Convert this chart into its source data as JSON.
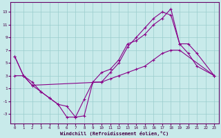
{
  "xlabel": "Windchill (Refroidissement éolien,°C)",
  "bg_color": "#c8eaea",
  "line_color": "#880088",
  "grid_color": "#99cccc",
  "xlim": [
    -0.5,
    23.5
  ],
  "ylim": [
    -4.5,
    14.5
  ],
  "xticks": [
    0,
    1,
    2,
    3,
    4,
    5,
    6,
    7,
    8,
    9,
    10,
    11,
    12,
    13,
    14,
    15,
    16,
    17,
    18,
    19,
    20,
    21,
    22,
    23
  ],
  "yticks": [
    -3,
    -1,
    1,
    3,
    5,
    7,
    9,
    11,
    13
  ],
  "line1_x": [
    0,
    1,
    2,
    3,
    4,
    5,
    6,
    7,
    8,
    9,
    10,
    11,
    12,
    13,
    14,
    15,
    16,
    17,
    18,
    19,
    20,
    21,
    23
  ],
  "line1_y": [
    6,
    3,
    2,
    0.5,
    -0.5,
    -1.5,
    -3.5,
    -3.5,
    -0.7,
    2,
    3.5,
    4.0,
    5.5,
    8.0,
    8.5,
    9.5,
    11.0,
    12.0,
    13.5,
    8.0,
    6.5,
    4.5,
    3.0
  ],
  "line2_x": [
    0,
    1,
    2,
    10,
    11,
    12,
    13,
    14,
    15,
    16,
    17,
    18,
    19,
    23
  ],
  "line2_y": [
    3,
    3,
    1.5,
    2.0,
    2.5,
    3.0,
    3.5,
    4.0,
    4.5,
    5.5,
    6.5,
    7.0,
    7.0,
    3.0
  ],
  "line3_x": [
    0,
    1,
    2,
    3,
    4,
    5,
    6,
    7,
    8,
    9,
    10,
    11,
    12,
    13,
    14,
    15,
    16,
    17,
    18,
    19,
    20,
    21,
    23
  ],
  "line3_y": [
    6,
    3,
    1.5,
    0.5,
    -0.5,
    -1.5,
    -1.8,
    -3.5,
    -3.3,
    2.0,
    2.0,
    3.5,
    5.0,
    7.5,
    9.0,
    10.5,
    12.0,
    13.0,
    12.5,
    8.0,
    8.0,
    6.5,
    3.0
  ]
}
